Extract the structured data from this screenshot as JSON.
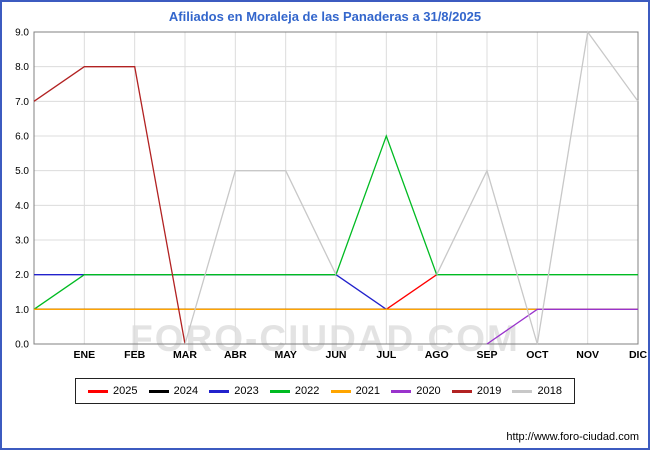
{
  "page": {
    "watermark": "FORO-CIUDAD.COM",
    "footer_url": "http://www.foro-ciudad.com",
    "border_color": "#3c5bc0"
  },
  "chart_data": {
    "type": "line",
    "title": "Afiliados en Moraleja de las Panaderas a 31/8/2025",
    "title_color": "#3366cc",
    "xlabel": "",
    "ylabel": "",
    "x_categories": [
      "ENE",
      "FEB",
      "MAR",
      "ABR",
      "MAY",
      "JUN",
      "JUL",
      "AGO",
      "SEP",
      "OCT",
      "NOV",
      "DIC"
    ],
    "ylim": [
      0,
      9
    ],
    "ytick_labels": [
      "0.0",
      "1.0",
      "2.0",
      "3.0",
      "4.0",
      "5.0",
      "6.0",
      "7.0",
      "8.0",
      "9.0"
    ],
    "grid": true,
    "legend_position": "bottom",
    "series_note": "dec_prev_year is the value plotted on the left axis (December of previous year) where the line starts; null = not visible/no data",
    "series": [
      {
        "name": "2025",
        "color": "#ff0000",
        "dec_prev_year": 1,
        "values": [
          1,
          1,
          1,
          1,
          1,
          1,
          1,
          2,
          null,
          null,
          null,
          null
        ]
      },
      {
        "name": "2024",
        "color": "#000000",
        "dec_prev_year": 1,
        "values": [
          1,
          1,
          1,
          1,
          1,
          1,
          1,
          1,
          1,
          1,
          1,
          1
        ]
      },
      {
        "name": "2023",
        "color": "#2222cc",
        "dec_prev_year": 2,
        "values": [
          2,
          2,
          2,
          2,
          2,
          2,
          1,
          1,
          1,
          1,
          1,
          1
        ]
      },
      {
        "name": "2022",
        "color": "#00bb22",
        "dec_prev_year": 1,
        "values": [
          2,
          2,
          2,
          2,
          2,
          2,
          6,
          2,
          2,
          2,
          2,
          2
        ]
      },
      {
        "name": "2021",
        "color": "#ffa500",
        "dec_prev_year": 1,
        "values": [
          1,
          1,
          1,
          1,
          1,
          1,
          1,
          1,
          1,
          1,
          1,
          1
        ]
      },
      {
        "name": "2020",
        "color": "#9933cc",
        "dec_prev_year": null,
        "values": [
          null,
          null,
          null,
          null,
          null,
          null,
          null,
          null,
          0,
          1,
          1,
          1
        ]
      },
      {
        "name": "2019",
        "color": "#b22222",
        "dec_prev_year": 7,
        "values": [
          8,
          8,
          0,
          null,
          null,
          null,
          null,
          null,
          null,
          null,
          null,
          null
        ]
      },
      {
        "name": "2018",
        "color": "#c8c8c8",
        "dec_prev_year": null,
        "values": [
          null,
          null,
          0,
          5,
          5,
          2,
          null,
          2,
          5,
          0,
          9,
          7
        ]
      }
    ]
  }
}
